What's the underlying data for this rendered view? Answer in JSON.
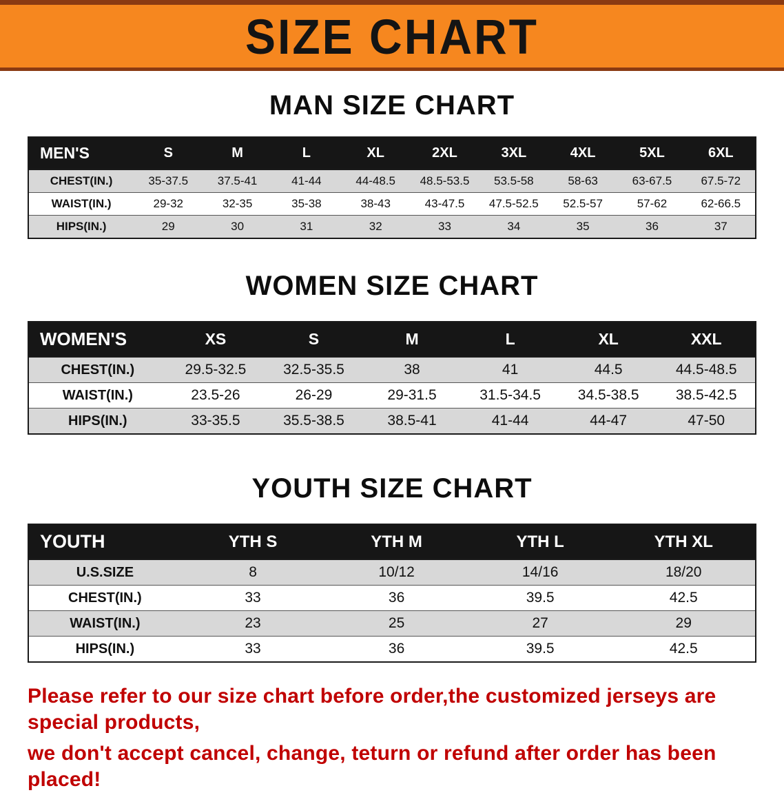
{
  "banner": {
    "title": "SIZE CHART"
  },
  "sections": [
    {
      "heading": "MAN SIZE CHART",
      "table": {
        "header": [
          "MEN'S",
          "S",
          "M",
          "L",
          "XL",
          "2XL",
          "3XL",
          "4XL",
          "5XL",
          "6XL"
        ],
        "rows": [
          [
            "CHEST(IN.)",
            "35-37.5",
            "37.5-41",
            "41-44",
            "44-48.5",
            "48.5-53.5",
            "53.5-58",
            "58-63",
            "63-67.5",
            "67.5-72"
          ],
          [
            "WAIST(IN.)",
            "29-32",
            "32-35",
            "35-38",
            "38-43",
            "43-47.5",
            "47.5-52.5",
            "52.5-57",
            "57-62",
            "62-66.5"
          ],
          [
            "HIPS(IN.)",
            "29",
            "30",
            "31",
            "32",
            "33",
            "34",
            "35",
            "36",
            "37"
          ]
        ]
      }
    },
    {
      "heading": "WOMEN SIZE CHART",
      "table": {
        "header": [
          "WOMEN'S",
          "XS",
          "S",
          "M",
          "L",
          "XL",
          "XXL"
        ],
        "rows": [
          [
            "CHEST(IN.)",
            "29.5-32.5",
            "32.5-35.5",
            "38",
            "41",
            "44.5",
            "44.5-48.5"
          ],
          [
            "WAIST(IN.)",
            "23.5-26",
            "26-29",
            "29-31.5",
            "31.5-34.5",
            "34.5-38.5",
            "38.5-42.5"
          ],
          [
            "HIPS(IN.)",
            "33-35.5",
            "35.5-38.5",
            "38.5-41",
            "41-44",
            "44-47",
            "47-50"
          ]
        ]
      }
    },
    {
      "heading": "YOUTH SIZE CHART",
      "table": {
        "header": [
          "YOUTH",
          "YTH S",
          "YTH M",
          "YTH L",
          "YTH XL"
        ],
        "rows": [
          [
            "U.S.SIZE",
            "8",
            "10/12",
            "14/16",
            "18/20"
          ],
          [
            "CHEST(IN.)",
            "33",
            "36",
            "39.5",
            "42.5"
          ],
          [
            "WAIST(IN.)",
            "23",
            "25",
            "27",
            "29"
          ],
          [
            "HIPS(IN.)",
            "33",
            "36",
            "39.5",
            "42.5"
          ]
        ]
      }
    }
  ],
  "footer": {
    "line1": "Please refer to our size chart before order,the customized jerseys are special products,",
    "line2": "we don't accept cancel, change, teturn or refund after order has been placed!"
  },
  "colors": {
    "banner_bg": "#f6871f",
    "banner_border": "#8a3a12",
    "header_bg": "#161616",
    "row_gray": "#d8d8d8",
    "notice_red": "#c00000"
  }
}
